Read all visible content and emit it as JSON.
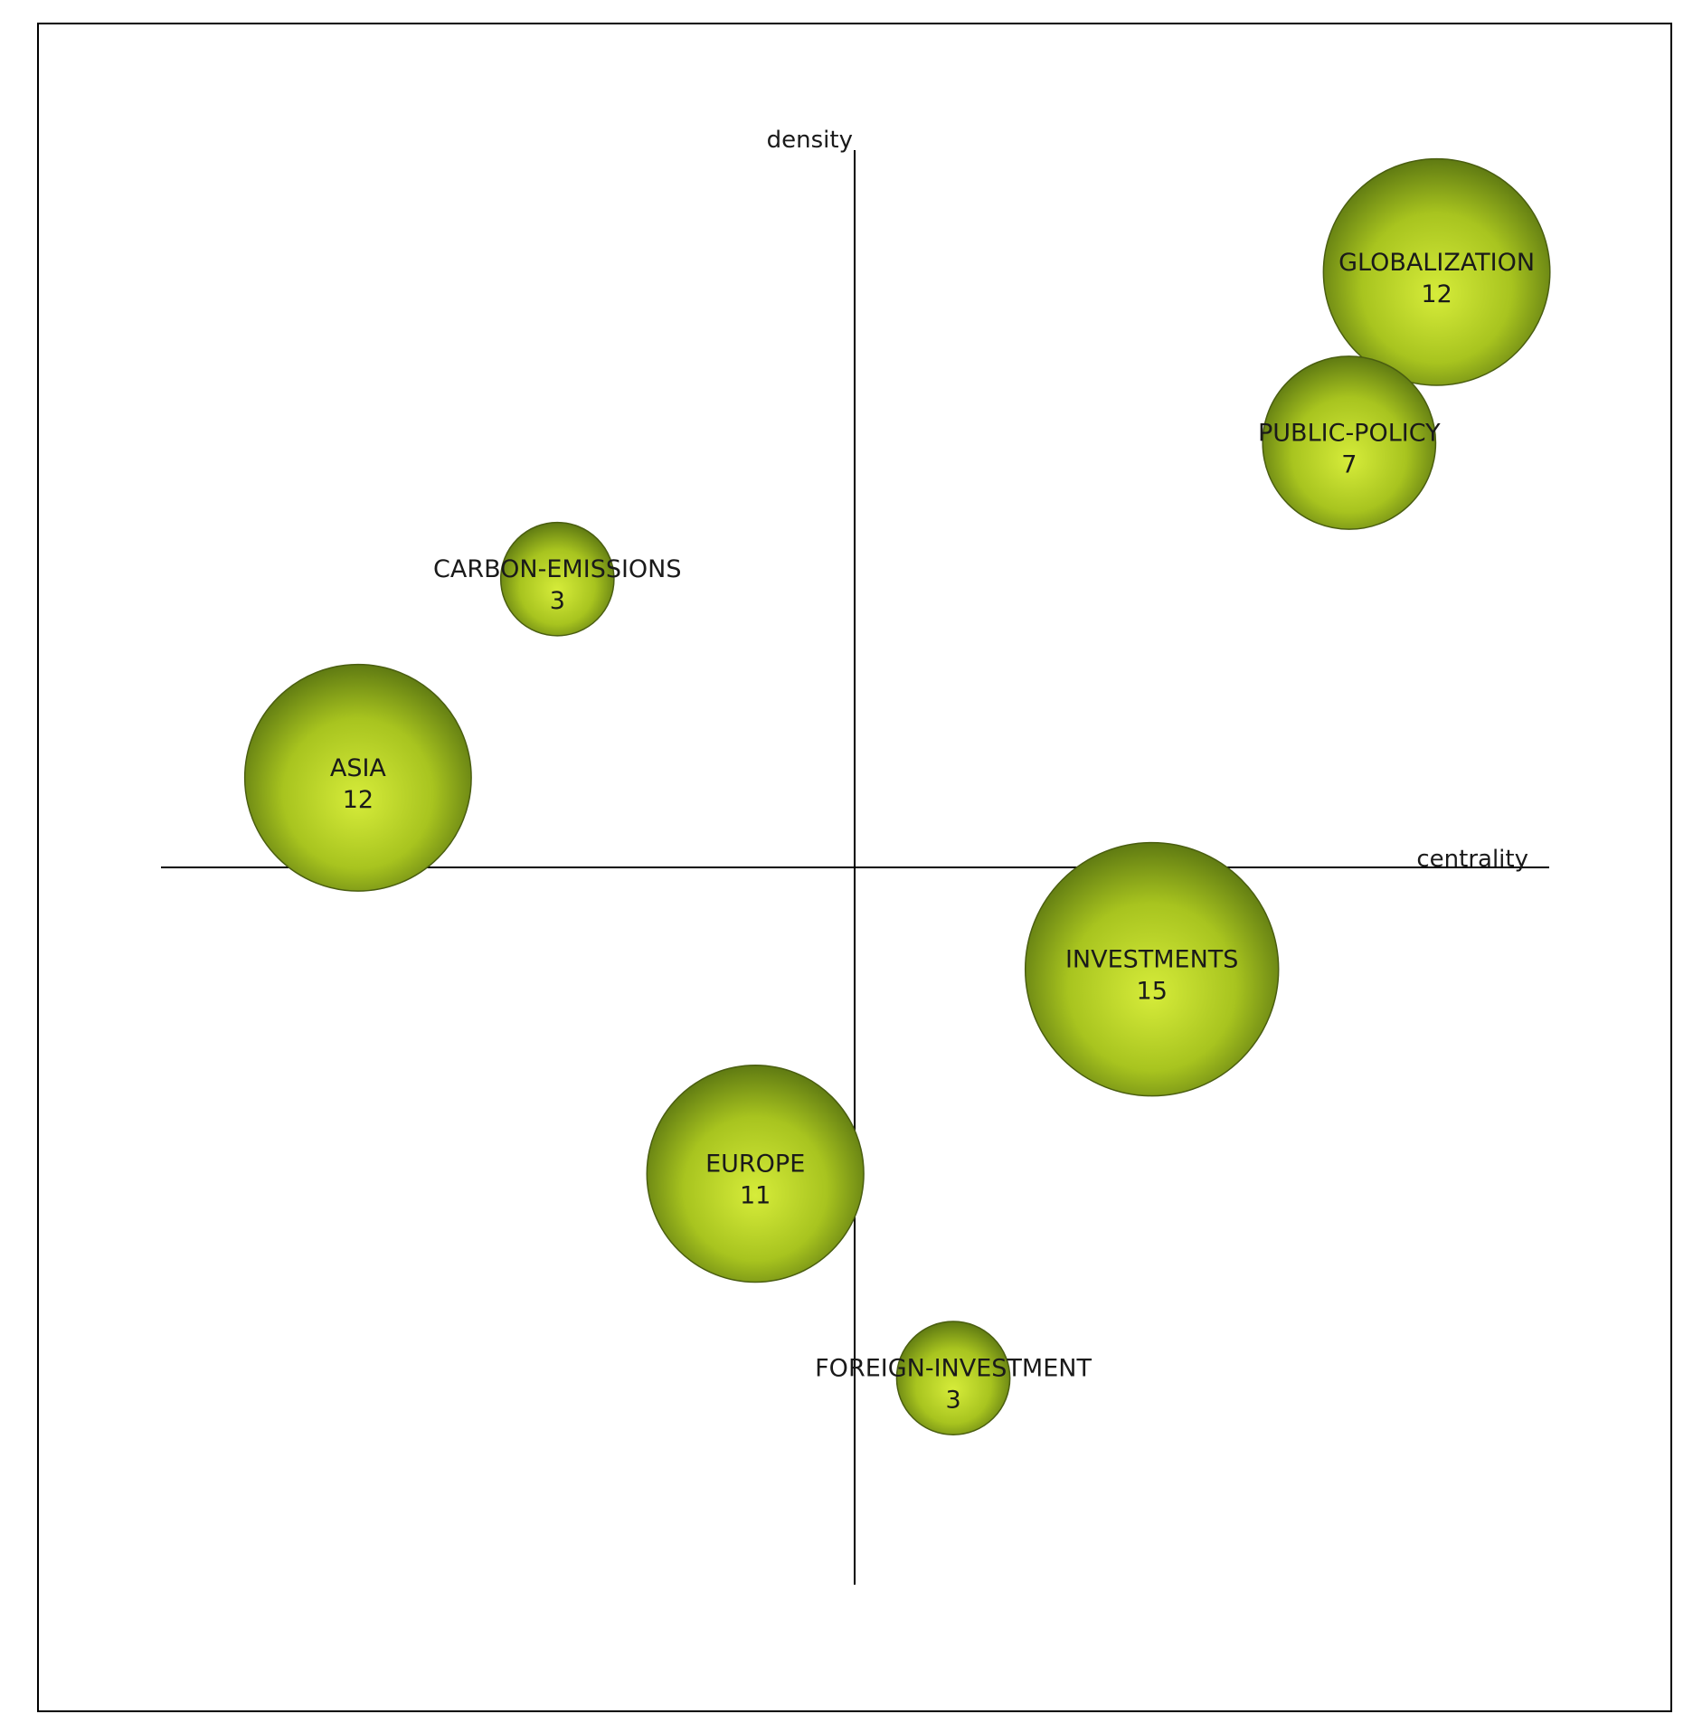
{
  "chart_data": {
    "type": "scatter",
    "subtype": "bubble",
    "xlabel": "centrality",
    "ylabel": "density",
    "grid": false,
    "legend": "none",
    "colors": {
      "bubble_light": "#d6ec3a",
      "bubble_mid": "#a8c41f",
      "bubble_dark": "#5f7a12",
      "axis": "#000000",
      "frame": "#000000"
    },
    "points": [
      {
        "label": "GLOBALIZATION",
        "value": 12,
        "x": 0.838,
        "y": 0.83
      },
      {
        "label": "PUBLIC-POLICY",
        "value": 7,
        "x": 0.712,
        "y": 0.592
      },
      {
        "label": "CARBON-EMISSIONS",
        "value": 3,
        "x": -0.428,
        "y": 0.402
      },
      {
        "label": "ASIA",
        "value": 12,
        "x": -0.715,
        "y": 0.125
      },
      {
        "label": "INVESTMENTS",
        "value": 15,
        "x": 0.428,
        "y": -0.142
      },
      {
        "label": "EUROPE",
        "value": 11,
        "x": -0.143,
        "y": -0.427
      },
      {
        "label": "FOREIGN-INVESTMENT",
        "value": 3,
        "x": 0.142,
        "y": -0.712
      }
    ]
  }
}
